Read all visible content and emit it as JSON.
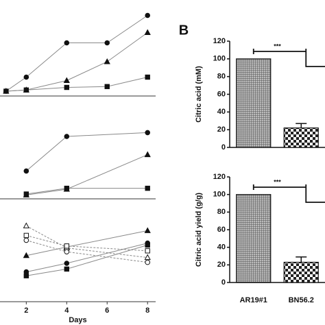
{
  "chart_data": [
    {
      "type": "line",
      "xlim": [
        0.7,
        8.4
      ],
      "ylim": [
        0,
        100
      ],
      "x": [
        1,
        2,
        4,
        6,
        8
      ],
      "series": [
        {
          "marker": "circle",
          "filled": true,
          "color": "#111",
          "values": [
            5.6,
            22,
            62,
            62,
            94
          ]
        },
        {
          "marker": "triangle",
          "filled": true,
          "color": "#111",
          "values": [
            5.6,
            7,
            18,
            40,
            74
          ]
        },
        {
          "marker": "square",
          "filled": true,
          "color": "#111",
          "values": [
            5.6,
            7,
            10,
            11,
            22
          ]
        }
      ]
    },
    {
      "type": "line",
      "xlim": [
        0.7,
        8.4
      ],
      "ylim": [
        0,
        100
      ],
      "x": [
        2,
        4,
        8
      ],
      "series": [
        {
          "marker": "circle",
          "filled": true,
          "color": "#111",
          "values": [
            29,
            65,
            69
          ]
        },
        {
          "marker": "triangle",
          "filled": true,
          "color": "#111",
          "values": [
            4,
            10,
            46
          ]
        },
        {
          "marker": "square",
          "filled": true,
          "color": "#111",
          "values": [
            5,
            11,
            11
          ]
        }
      ]
    },
    {
      "type": "line",
      "xlim": [
        0.7,
        8.4
      ],
      "ylim": [
        0,
        100
      ],
      "x": [
        2,
        4,
        8
      ],
      "xticks": [
        2,
        4,
        6,
        8
      ],
      "xlabel": "Days",
      "series": [
        {
          "marker": "triangle",
          "filled": true,
          "color": "#111",
          "values": [
            48,
            57,
            74
          ]
        },
        {
          "marker": "circle",
          "filled": true,
          "color": "#111",
          "values": [
            31,
            40,
            61
          ]
        },
        {
          "marker": "square",
          "filled": true,
          "color": "#111",
          "values": [
            27,
            34,
            59
          ]
        },
        {
          "marker": "triangle",
          "filled": false,
          "color": "#111",
          "values": [
            79,
            56,
            46
          ]
        },
        {
          "marker": "square",
          "filled": false,
          "color": "#111",
          "values": [
            69,
            58,
            53
          ]
        },
        {
          "marker": "circle",
          "filled": false,
          "color": "#111",
          "values": [
            64,
            52,
            41
          ]
        }
      ]
    },
    {
      "type": "bar",
      "panel_label": "B",
      "ylabel": "Citric acid (mM)",
      "categories": [
        null,
        null
      ],
      "values": [
        100,
        22
      ],
      "errors": [
        null,
        5
      ],
      "patterns": [
        "grid",
        "checker"
      ],
      "annotation": "***",
      "ylim": [
        0,
        120
      ],
      "yticks": [
        0,
        20,
        40,
        60,
        80,
        100,
        120
      ]
    },
    {
      "type": "bar",
      "ylabel": "Citric acid yield (g/g)",
      "categories": [
        "AR19#1",
        "BN56.2"
      ],
      "values": [
        100,
        23
      ],
      "errors": [
        null,
        6
      ],
      "patterns": [
        "grid",
        "checker"
      ],
      "annotation": "***",
      "ylim": [
        0,
        120
      ],
      "yticks": [
        0,
        20,
        40,
        60,
        80,
        100,
        120
      ]
    }
  ]
}
